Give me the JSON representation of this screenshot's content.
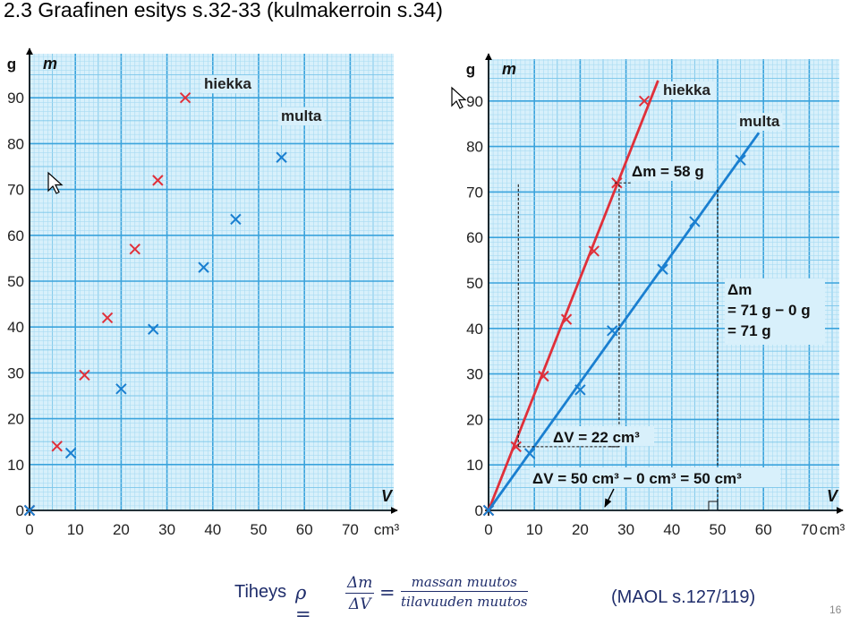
{
  "title": "2.3 Graafinen esitys s.32-33 (kulmakerroin s.34)",
  "chart_data": [
    {
      "type": "scatter",
      "y_unit": "g",
      "y_symbol": "m",
      "x_symbol": "V",
      "x_unit": "cm³",
      "xlim": [
        0,
        80
      ],
      "ylim": [
        0,
        100
      ],
      "x_ticks": [
        0,
        10,
        20,
        30,
        40,
        50,
        60,
        70
      ],
      "y_ticks": [
        0,
        10,
        20,
        30,
        40,
        50,
        60,
        70,
        80,
        90
      ],
      "grid": true,
      "series": [
        {
          "name": "hiekka",
          "color": "#e0303a",
          "x": [
            0,
            6,
            12,
            17,
            23,
            28,
            34
          ],
          "y": [
            0,
            14,
            29.5,
            42,
            57,
            72,
            90
          ]
        },
        {
          "name": "multa",
          "color": "#1a7fd0",
          "x": [
            0,
            9,
            20,
            27,
            38,
            45,
            55
          ],
          "y": [
            0,
            12.5,
            26.5,
            39.5,
            53,
            63.5,
            77
          ]
        }
      ]
    },
    {
      "type": "line",
      "y_unit": "g",
      "y_symbol": "m",
      "x_symbol": "V",
      "x_unit": "cm³",
      "xlim": [
        0,
        80
      ],
      "ylim": [
        0,
        100
      ],
      "x_ticks": [
        0,
        10,
        20,
        30,
        40,
        50,
        60,
        70
      ],
      "y_ticks": [
        0,
        10,
        20,
        30,
        40,
        50,
        60,
        70,
        80,
        90
      ],
      "grid": true,
      "series": [
        {
          "name": "hiekka",
          "color": "#e0303a",
          "x": [
            0,
            6,
            12,
            17,
            23,
            28,
            34
          ],
          "y": [
            0,
            14,
            29.5,
            42,
            57,
            72,
            90
          ],
          "fit_line": {
            "x": [
              0,
              37
            ],
            "y": [
              0,
              94.5
            ]
          }
        },
        {
          "name": "multa",
          "color": "#1a7fd0",
          "x": [
            0,
            9,
            20,
            27,
            38,
            45,
            55
          ],
          "y": [
            0,
            12.5,
            26.5,
            39.5,
            53,
            63.5,
            77
          ],
          "fit_line": {
            "x": [
              0,
              59
            ],
            "y": [
              0,
              83
            ]
          }
        }
      ],
      "annotations": {
        "dm_red": "Δm = 58 g",
        "dv_red": "ΔV = 22 cm³",
        "dm_blue": [
          "Δm",
          "= 71 g − 0 g",
          "= 71 g"
        ],
        "dv_blue": "ΔV = 50 cm³ − 0 cm³ = 50 cm³"
      }
    }
  ],
  "formula": {
    "word": "Tiheys",
    "rho": "ρ =",
    "frac1_num": "Δm",
    "frac1_den": "ΔV",
    "eq": "=",
    "frac2_num": "massan muutos",
    "frac2_den": "tilavuuden muutos"
  },
  "reference": "(MAOL s.127/119)",
  "page_number": "16"
}
